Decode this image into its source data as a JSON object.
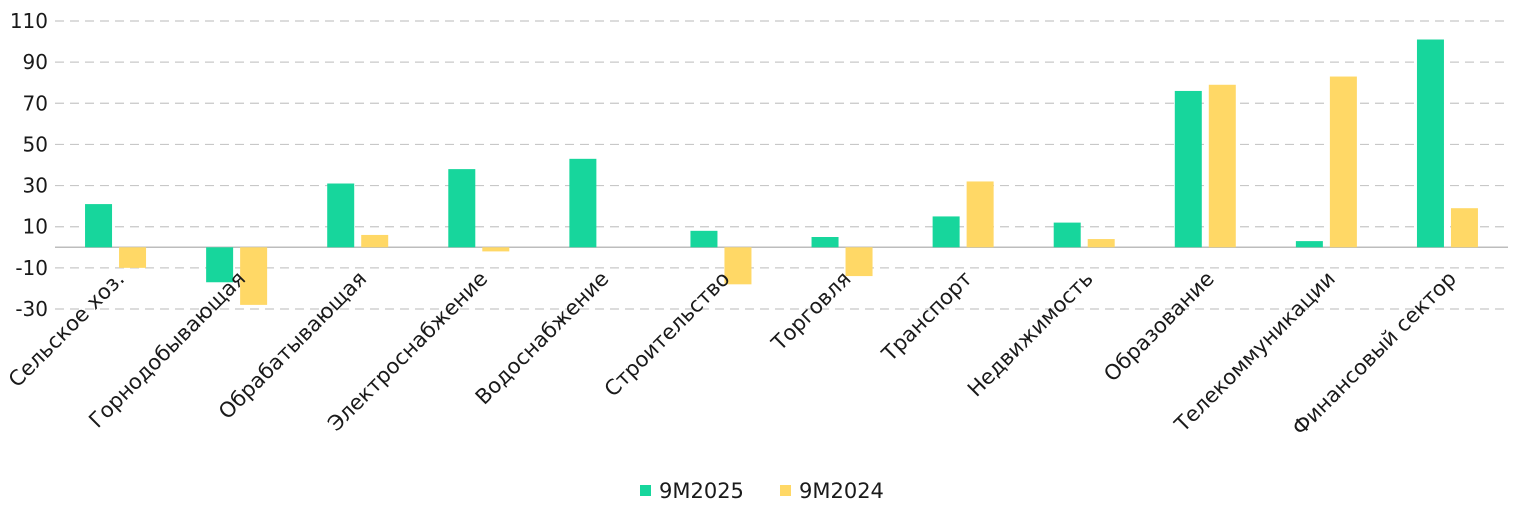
{
  "chart_data": {
    "type": "bar",
    "title": "",
    "xlabel": "",
    "ylabel": "",
    "ylim": [
      -30,
      110
    ],
    "yticks": [
      -30,
      -10,
      10,
      30,
      50,
      70,
      90,
      110
    ],
    "grid": true,
    "legend_position": "bottom-center",
    "categories": [
      "Сельское хоз.",
      "Горнодобывающая",
      "Обрабатывающая",
      "Электроснабжение",
      "Водоснабжение",
      "Строительство",
      "Торговля",
      "Транспорт",
      "Недвижимость",
      "Образование",
      "Телекоммуникации",
      "Финансовый сектор"
    ],
    "series": [
      {
        "name": "9M2025",
        "color": "#17d69c",
        "values": [
          21,
          -17,
          31,
          38,
          43,
          8,
          5,
          15,
          12,
          76,
          3,
          101
        ]
      },
      {
        "name": "9M2024",
        "color": "#ffd866",
        "values": [
          -10,
          -28,
          6,
          -2,
          0,
          -18,
          -14,
          32,
          4,
          79,
          83,
          19
        ]
      }
    ]
  }
}
